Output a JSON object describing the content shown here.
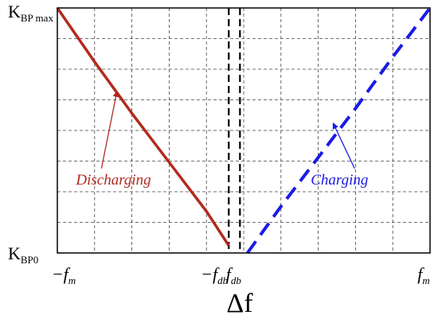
{
  "chart_data": {
    "type": "line",
    "title": "",
    "xlabel": "Δf",
    "ylabel": "",
    "grid": true,
    "xlim": [
      -10,
      10
    ],
    "ylim": [
      0,
      1
    ],
    "x_ticks": [
      {
        "x": -10,
        "prefix": "−",
        "main": "f",
        "sub": "m"
      },
      {
        "x": -1,
        "prefix": "−",
        "main": "f",
        "sub": "db"
      },
      {
        "x": 0.2,
        "prefix": "",
        "main": "f",
        "sub": "db"
      },
      {
        "x": 10,
        "prefix": "",
        "main": "f",
        "sub": "m"
      }
    ],
    "y_ticks": [
      {
        "y": 0,
        "main": "K",
        "sub": "BP0"
      },
      {
        "y": 1,
        "main": "K",
        "sub": "BP max"
      }
    ],
    "deadband_lines": [
      -0.8,
      -0.2
    ],
    "series": [
      {
        "name": "Discharging",
        "color": "#b22a1e",
        "style": "solid",
        "x": [
          -10,
          -8,
          -6,
          -4,
          -2,
          -0.8
        ],
        "y": [
          1.0,
          0.78,
          0.57,
          0.37,
          0.17,
          0.03
        ]
      },
      {
        "name": "Charging",
        "color": "#1a1ae6",
        "style": "dashed",
        "x": [
          0.2,
          2,
          4,
          6,
          8,
          10
        ],
        "y": [
          0.0,
          0.19,
          0.39,
          0.59,
          0.8,
          1.0
        ]
      }
    ],
    "annotations": [
      {
        "text": "Discharging",
        "color": "#b22a1e",
        "text_x": -9,
        "text_y": 0.28,
        "arrow_to_x": -6.8,
        "arrow_to_y": 0.66
      },
      {
        "text": "Charging",
        "color": "#1a1ae6",
        "text_x": 3.6,
        "text_y": 0.28,
        "arrow_to_x": 4.8,
        "arrow_to_y": 0.53
      }
    ]
  }
}
